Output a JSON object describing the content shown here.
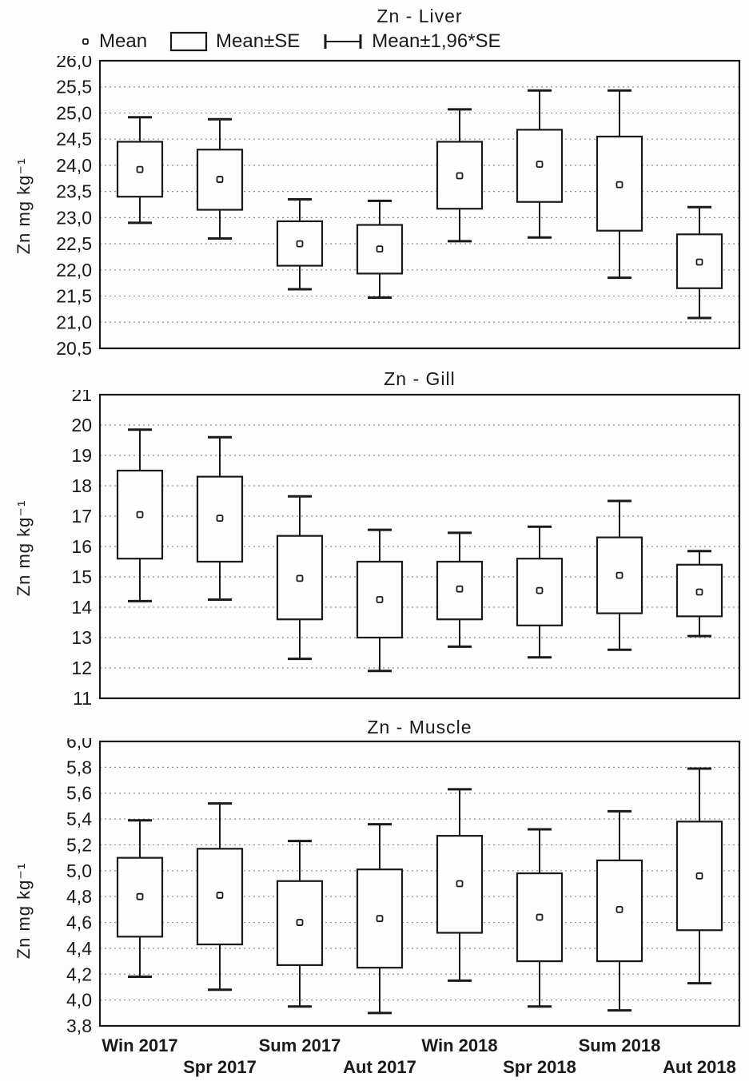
{
  "page": {
    "background": "#fdfdfd",
    "text_color": "#1a1a1a"
  },
  "legend": {
    "items": [
      {
        "label": "Mean",
        "marker": "mean-point"
      },
      {
        "label": "Mean±SE",
        "marker": "box"
      },
      {
        "label": "Mean±1,96*SE",
        "marker": "whisker"
      }
    ]
  },
  "categories": [
    "Win 2017",
    "Spr 2017",
    "Sum 2017",
    "Aut 2017",
    "Win 2018",
    "Spr 2018",
    "Sum 2018",
    "Aut 2018"
  ],
  "chart_data": [
    {
      "type": "box",
      "title": "Zn - Liver",
      "ylabel": "Zn mg kg⁻¹",
      "ylim": [
        20.5,
        26.0
      ],
      "grid": "dotted-horizontal",
      "legend_position": "top",
      "ticks": [
        {
          "value": 26.0,
          "label": "26,0"
        },
        {
          "value": 25.5,
          "label": "25,5"
        },
        {
          "value": 25.0,
          "label": "25,0"
        },
        {
          "value": 24.5,
          "label": "24,5"
        },
        {
          "value": 24.0,
          "label": "24,0"
        },
        {
          "value": 23.5,
          "label": "23,5"
        },
        {
          "value": 23.0,
          "label": "23,0"
        },
        {
          "value": 22.5,
          "label": "22,5"
        },
        {
          "value": 22.0,
          "label": "22,0"
        },
        {
          "value": 21.5,
          "label": "21,5"
        },
        {
          "value": 21.0,
          "label": "21,0"
        },
        {
          "value": 20.5,
          "label": "20,5"
        }
      ],
      "points": [
        {
          "category": "Win 2017",
          "mean": 23.92,
          "se_low": 23.4,
          "se_high": 24.45,
          "ci_low": 22.9,
          "ci_high": 24.92
        },
        {
          "category": "Spr 2017",
          "mean": 23.73,
          "se_low": 23.15,
          "se_high": 24.3,
          "ci_low": 22.6,
          "ci_high": 24.88
        },
        {
          "category": "Sum 2017",
          "mean": 22.5,
          "se_low": 22.08,
          "se_high": 22.93,
          "ci_low": 21.63,
          "ci_high": 23.35
        },
        {
          "category": "Aut 2017",
          "mean": 22.4,
          "se_low": 21.93,
          "se_high": 22.86,
          "ci_low": 21.47,
          "ci_high": 23.32
        },
        {
          "category": "Win 2018",
          "mean": 23.8,
          "se_low": 23.17,
          "se_high": 24.45,
          "ci_low": 22.55,
          "ci_high": 25.07
        },
        {
          "category": "Spr 2018",
          "mean": 24.02,
          "se_low": 23.3,
          "se_high": 24.68,
          "ci_low": 22.62,
          "ci_high": 25.43
        },
        {
          "category": "Sum 2018",
          "mean": 23.63,
          "se_low": 22.75,
          "se_high": 24.55,
          "ci_low": 21.85,
          "ci_high": 25.43
        },
        {
          "category": "Aut 2018",
          "mean": 22.15,
          "se_low": 21.65,
          "se_high": 22.68,
          "ci_low": 21.08,
          "ci_high": 23.2
        }
      ]
    },
    {
      "type": "box",
      "title": "Zn - Gill",
      "ylabel": "Zn mg kg⁻¹",
      "ylim": [
        11,
        21
      ],
      "grid": "dotted-horizontal",
      "ticks": [
        {
          "value": 21,
          "label": "21"
        },
        {
          "value": 20,
          "label": "20"
        },
        {
          "value": 19,
          "label": "19"
        },
        {
          "value": 18,
          "label": "18"
        },
        {
          "value": 17,
          "label": "17"
        },
        {
          "value": 16,
          "label": "16"
        },
        {
          "value": 15,
          "label": "15"
        },
        {
          "value": 14,
          "label": "14"
        },
        {
          "value": 13,
          "label": "13"
        },
        {
          "value": 12,
          "label": "12"
        },
        {
          "value": 11,
          "label": "11"
        }
      ],
      "points": [
        {
          "category": "Win 2017",
          "mean": 17.05,
          "se_low": 15.6,
          "se_high": 18.5,
          "ci_low": 14.2,
          "ci_high": 19.85
        },
        {
          "category": "Spr 2017",
          "mean": 16.93,
          "se_low": 15.5,
          "se_high": 18.3,
          "ci_low": 14.25,
          "ci_high": 19.6
        },
        {
          "category": "Sum 2017",
          "mean": 14.95,
          "se_low": 13.6,
          "se_high": 16.35,
          "ci_low": 12.3,
          "ci_high": 17.65
        },
        {
          "category": "Aut 2017",
          "mean": 14.25,
          "se_low": 13.0,
          "se_high": 15.5,
          "ci_low": 11.9,
          "ci_high": 16.55
        },
        {
          "category": "Win 2018",
          "mean": 14.6,
          "se_low": 13.6,
          "se_high": 15.5,
          "ci_low": 12.7,
          "ci_high": 16.45
        },
        {
          "category": "Spr 2018",
          "mean": 14.55,
          "se_low": 13.4,
          "se_high": 15.6,
          "ci_low": 12.35,
          "ci_high": 16.65
        },
        {
          "category": "Sum 2018",
          "mean": 15.05,
          "se_low": 13.8,
          "se_high": 16.3,
          "ci_low": 12.6,
          "ci_high": 17.5
        },
        {
          "category": "Aut 2018",
          "mean": 14.5,
          "se_low": 13.7,
          "se_high": 15.4,
          "ci_low": 13.05,
          "ci_high": 15.85
        }
      ]
    },
    {
      "type": "box",
      "title": "Zn - Muscle",
      "ylabel": "Zn mg kg⁻¹",
      "ylim": [
        3.8,
        6.0
      ],
      "grid": "dotted-horizontal",
      "ticks": [
        {
          "value": 6.0,
          "label": "6,0"
        },
        {
          "value": 5.8,
          "label": "5,8"
        },
        {
          "value": 5.6,
          "label": "5,6"
        },
        {
          "value": 5.4,
          "label": "5,4"
        },
        {
          "value": 5.2,
          "label": "5,2"
        },
        {
          "value": 5.0,
          "label": "5,0"
        },
        {
          "value": 4.8,
          "label": "4,8"
        },
        {
          "value": 4.6,
          "label": "4,6"
        },
        {
          "value": 4.4,
          "label": "4,4"
        },
        {
          "value": 4.2,
          "label": "4,2"
        },
        {
          "value": 4.0,
          "label": "4,0"
        },
        {
          "value": 3.8,
          "label": "3,8"
        }
      ],
      "points": [
        {
          "category": "Win 2017",
          "mean": 4.8,
          "se_low": 4.49,
          "se_high": 5.1,
          "ci_low": 4.18,
          "ci_high": 5.39
        },
        {
          "category": "Spr 2017",
          "mean": 4.81,
          "se_low": 4.43,
          "se_high": 5.17,
          "ci_low": 4.08,
          "ci_high": 5.52
        },
        {
          "category": "Sum 2017",
          "mean": 4.6,
          "se_low": 4.27,
          "se_high": 4.92,
          "ci_low": 3.95,
          "ci_high": 5.23
        },
        {
          "category": "Aut 2017",
          "mean": 4.63,
          "se_low": 4.25,
          "se_high": 5.01,
          "ci_low": 3.9,
          "ci_high": 5.36
        },
        {
          "category": "Win 2018",
          "mean": 4.9,
          "se_low": 4.52,
          "se_high": 5.27,
          "ci_low": 4.15,
          "ci_high": 5.63
        },
        {
          "category": "Spr 2018",
          "mean": 4.64,
          "se_low": 4.3,
          "se_high": 4.98,
          "ci_low": 3.95,
          "ci_high": 5.32
        },
        {
          "category": "Sum 2018",
          "mean": 4.7,
          "se_low": 4.3,
          "se_high": 5.08,
          "ci_low": 3.92,
          "ci_high": 5.46
        },
        {
          "category": "Aut 2018",
          "mean": 4.96,
          "se_low": 4.54,
          "se_high": 5.38,
          "ci_low": 4.13,
          "ci_high": 5.79
        }
      ]
    }
  ]
}
